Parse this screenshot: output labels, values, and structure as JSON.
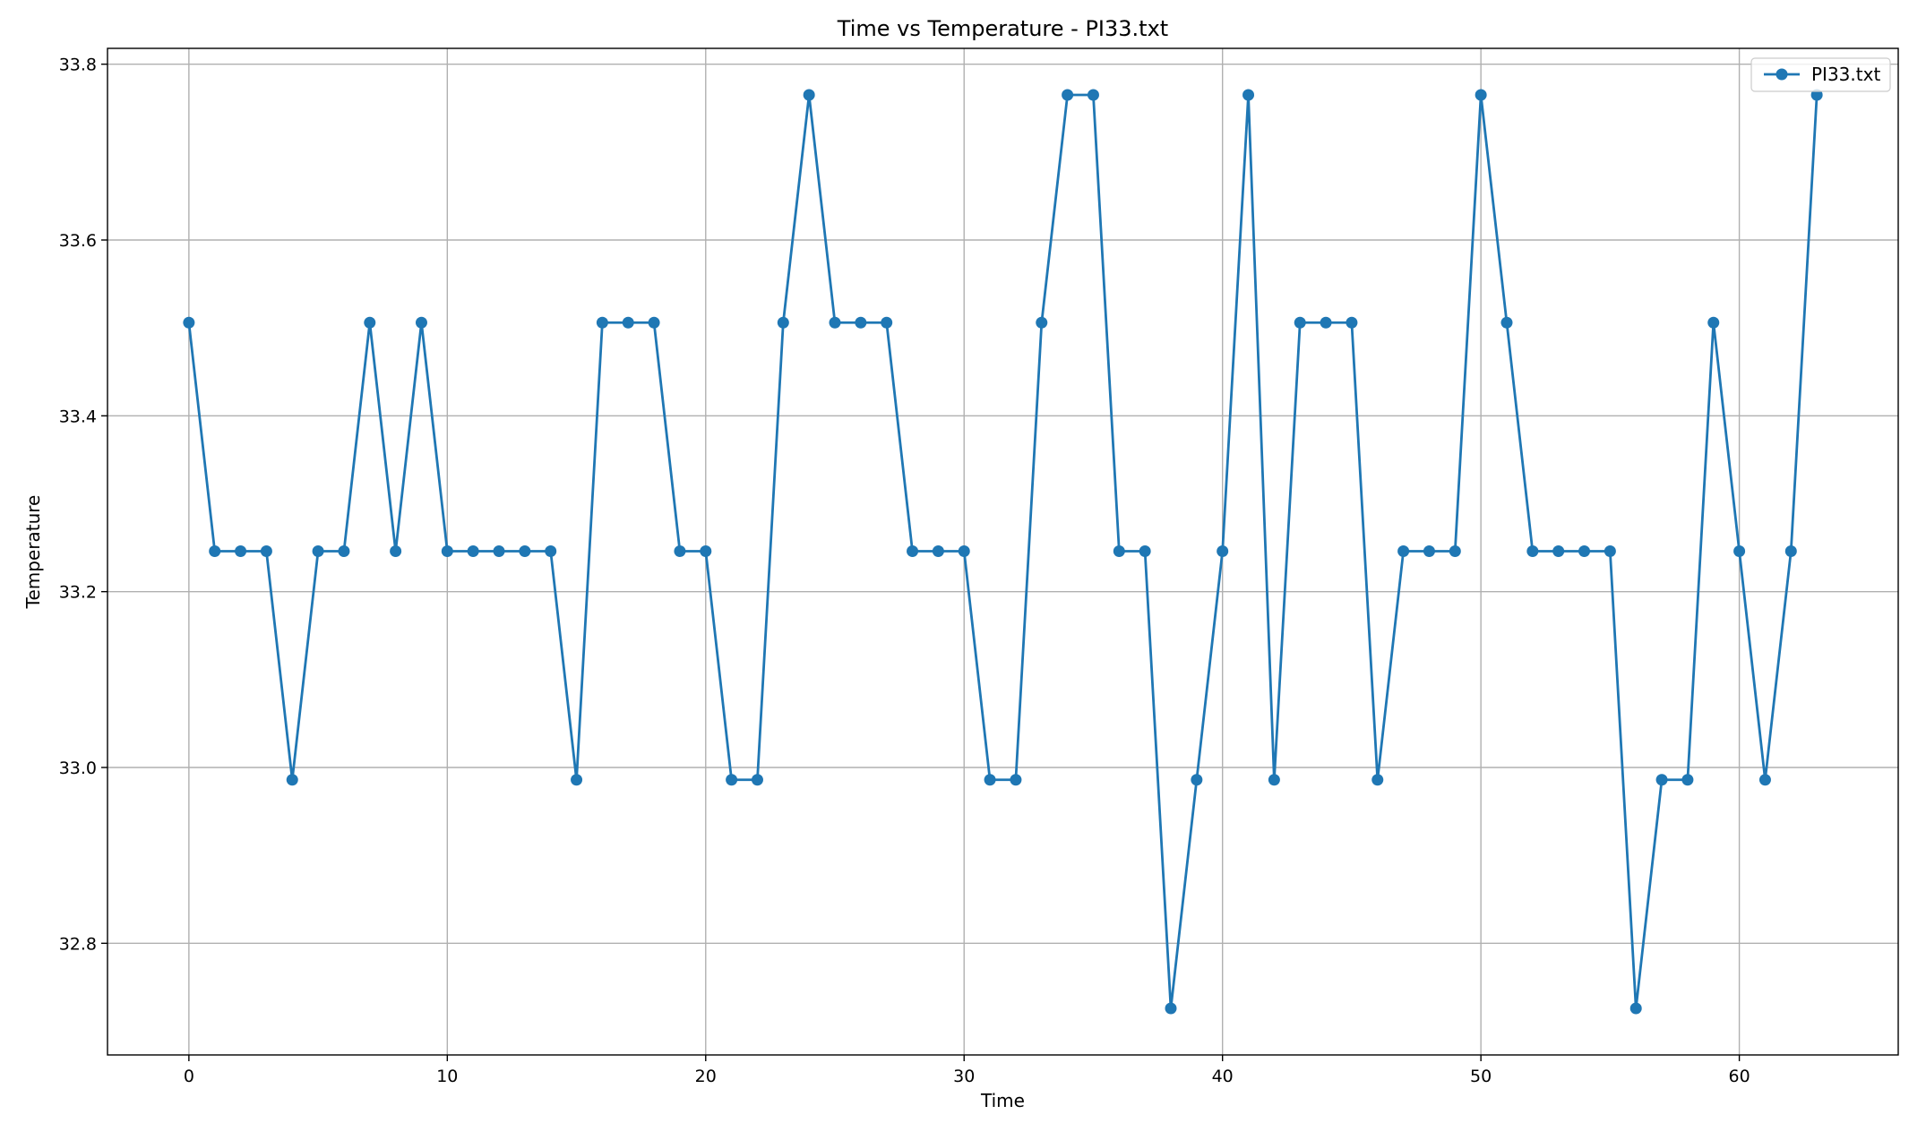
{
  "chart_data": {
    "type": "line",
    "title": "Time vs Temperature - PI33.txt",
    "xlabel": "Time",
    "ylabel": "Temperature",
    "xlim": [
      -3.15,
      66.15
    ],
    "ylim": [
      32.673,
      33.818
    ],
    "xticks": [
      0,
      10,
      20,
      30,
      40,
      50,
      60
    ],
    "yticks": [
      32.8,
      33.0,
      33.2,
      33.4,
      33.6,
      33.8
    ],
    "ytick_labels": [
      "32.8",
      "33.0",
      "33.2",
      "33.4",
      "33.6",
      "33.8"
    ],
    "grid": true,
    "legend": {
      "position": "top-right"
    },
    "series": [
      {
        "name": "PI33.txt",
        "color": "#1f77b4",
        "marker": "circle",
        "x": [
          0,
          1,
          2,
          3,
          4,
          5,
          6,
          7,
          8,
          9,
          10,
          11,
          12,
          13,
          14,
          15,
          16,
          17,
          18,
          19,
          20,
          21,
          22,
          23,
          24,
          25,
          26,
          27,
          28,
          29,
          30,
          31,
          32,
          33,
          34,
          35,
          36,
          37,
          38,
          39,
          40,
          41,
          42,
          43,
          44,
          45,
          46,
          47,
          48,
          49,
          50,
          51,
          52,
          53,
          54,
          55,
          56,
          57,
          58,
          59,
          60,
          61,
          62,
          63
        ],
        "values": [
          33.506,
          33.246,
          33.246,
          33.246,
          32.986,
          33.246,
          33.246,
          33.506,
          33.246,
          33.506,
          33.246,
          33.246,
          33.246,
          33.246,
          33.246,
          32.986,
          33.506,
          33.506,
          33.506,
          33.246,
          33.246,
          32.986,
          32.986,
          33.506,
          33.765,
          33.506,
          33.506,
          33.506,
          33.246,
          33.246,
          33.246,
          32.986,
          32.986,
          33.506,
          33.765,
          33.765,
          33.246,
          33.246,
          32.726,
          32.986,
          33.246,
          33.765,
          32.986,
          33.506,
          33.506,
          33.506,
          32.986,
          33.246,
          33.246,
          33.246,
          33.765,
          33.506,
          33.246,
          33.246,
          33.246,
          33.246,
          32.726,
          32.986,
          32.986,
          33.506,
          33.246,
          32.986,
          33.246,
          33.765
        ]
      }
    ]
  }
}
